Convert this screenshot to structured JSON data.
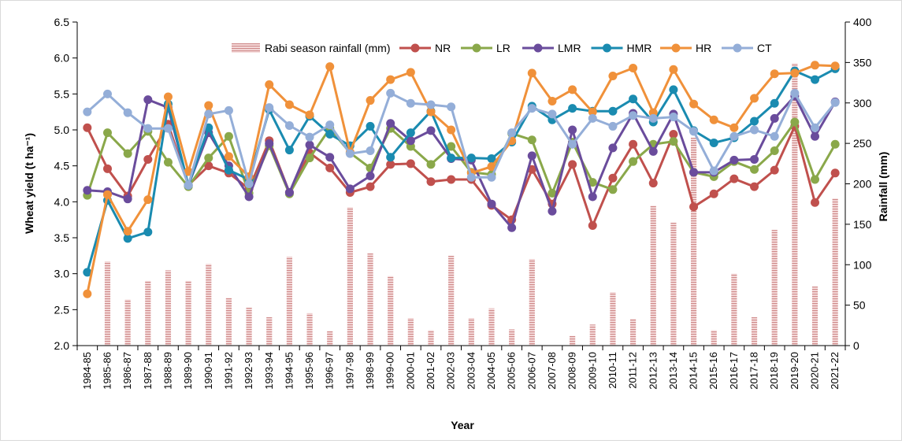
{
  "chart_data": {
    "type": "line",
    "xlabel": "Year",
    "ylabel": "Wheat yield (t ha⁻¹)",
    "y2label": "Rainfall (mm)",
    "ylim": [
      2.0,
      6.5
    ],
    "y2lim": [
      0,
      400
    ],
    "yticks": [
      "2.0",
      "2.5",
      "3.0",
      "3.5",
      "4.0",
      "4.5",
      "5.0",
      "5.5",
      "6.0",
      "6.5"
    ],
    "y2ticks": [
      "0",
      "50",
      "100",
      "150",
      "200",
      "250",
      "300",
      "350",
      "400"
    ],
    "legend_position": "top",
    "categories": [
      "1984-85",
      "1985-86",
      "1986-87",
      "1987-88",
      "1988-89",
      "1989-90",
      "1990-91",
      "1991-92",
      "1992-93",
      "1993-94",
      "1994-95",
      "1995-96",
      "1996-97",
      "1997-98",
      "1998-99",
      "1999-00",
      "2000-01",
      "2001-02",
      "2002-03",
      "2003-04",
      "2004-05",
      "2005-06",
      "2006-07",
      "2007-08",
      "2008-09",
      "2009-10",
      "2010-11",
      "2011-12",
      "2012-13",
      "2013-14",
      "2014-15",
      "2015-16",
      "2016-17",
      "2017-18",
      "2018-19",
      "2019-20",
      "2020-21",
      "2021-22"
    ],
    "rainfall": {
      "name": "Rabi season rainfall (mm)",
      "color": "#d9a3a3",
      "values": [
        0,
        104,
        57,
        80,
        93,
        80,
        101,
        59,
        47,
        35,
        110,
        40,
        18,
        171,
        114,
        86,
        34,
        19,
        111,
        34,
        46,
        20,
        107,
        0,
        12,
        26,
        66,
        33,
        173,
        152,
        257,
        19,
        89,
        35,
        143,
        349,
        73,
        182
      ]
    },
    "series": [
      {
        "name": "NR",
        "color": "#c0504d",
        "values": [
          5.03,
          4.46,
          4.08,
          4.59,
          5.08,
          4.23,
          4.5,
          4.4,
          4.18,
          4.85,
          4.13,
          4.68,
          4.47,
          4.13,
          4.21,
          4.52,
          4.53,
          4.28,
          4.31,
          4.31,
          3.95,
          3.75,
          4.45,
          3.97,
          4.52,
          3.67,
          4.33,
          4.8,
          4.26,
          4.94,
          3.93,
          4.11,
          4.32,
          4.21,
          4.44,
          5.05,
          3.99,
          4.4
        ]
      },
      {
        "name": "LR",
        "color": "#8aa84a",
        "values": [
          4.09,
          4.96,
          4.67,
          4.98,
          4.55,
          4.21,
          4.61,
          4.91,
          4.12,
          4.78,
          4.11,
          4.61,
          5.02,
          4.68,
          4.47,
          5.02,
          4.77,
          4.52,
          4.77,
          4.41,
          4.38,
          4.95,
          4.86,
          4.12,
          4.83,
          4.27,
          4.17,
          4.56,
          4.8,
          4.84,
          4.41,
          4.35,
          4.56,
          4.45,
          4.71,
          5.11,
          4.31,
          4.8
        ]
      },
      {
        "name": "LMR",
        "color": "#6a4c9c",
        "values": [
          4.16,
          4.14,
          4.04,
          5.42,
          5.31,
          4.23,
          4.96,
          4.5,
          4.07,
          4.81,
          4.13,
          4.79,
          4.62,
          4.18,
          4.36,
          5.09,
          4.85,
          4.99,
          4.6,
          4.58,
          3.97,
          3.64,
          4.64,
          3.87,
          5.0,
          4.07,
          4.75,
          5.23,
          4.7,
          5.22,
          4.41,
          4.41,
          4.58,
          4.59,
          5.16,
          5.47,
          4.91,
          5.39
        ]
      },
      {
        "name": "HMR",
        "color": "#1a8bb0",
        "values": [
          3.02,
          4.02,
          3.49,
          3.58,
          5.36,
          4.23,
          5.03,
          4.44,
          4.31,
          5.28,
          4.72,
          5.19,
          4.94,
          4.78,
          5.05,
          4.62,
          4.96,
          5.26,
          4.61,
          4.61,
          4.6,
          4.83,
          5.33,
          5.14,
          5.3,
          5.26,
          5.26,
          5.43,
          5.11,
          5.56,
          4.99,
          4.82,
          4.89,
          5.12,
          5.37,
          5.82,
          5.7,
          5.85
        ]
      },
      {
        "name": "HR",
        "color": "#f0913a",
        "values": [
          2.72,
          4.1,
          3.59,
          4.03,
          5.46,
          4.42,
          5.34,
          4.63,
          4.35,
          5.63,
          5.35,
          5.21,
          5.88,
          4.69,
          5.41,
          5.7,
          5.8,
          5.25,
          5.0,
          4.4,
          4.49,
          4.85,
          5.79,
          5.4,
          5.56,
          5.25,
          5.75,
          5.86,
          5.24,
          5.84,
          5.36,
          5.14,
          5.03,
          5.44,
          5.78,
          5.79,
          5.9,
          5.89
        ]
      },
      {
        "name": "CT",
        "color": "#94aed8",
        "values": [
          5.25,
          5.5,
          5.24,
          5.02,
          5.02,
          4.23,
          5.22,
          5.27,
          4.25,
          5.31,
          5.06,
          4.9,
          5.07,
          4.67,
          4.71,
          5.51,
          5.37,
          5.35,
          5.32,
          4.34,
          4.34,
          4.96,
          5.3,
          5.22,
          4.8,
          5.16,
          5.05,
          5.2,
          5.16,
          5.18,
          4.98,
          4.43,
          4.91,
          5.0,
          4.91,
          5.51,
          5.03,
          5.38
        ]
      }
    ]
  }
}
